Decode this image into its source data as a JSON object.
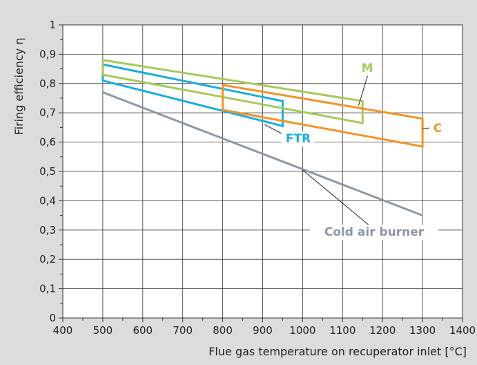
{
  "chart_data": {
    "type": "line",
    "xlabel": "Flue gas temperature on recuperator inlet [°C]",
    "ylabel": "Firing efficiency η",
    "xlim": [
      400,
      1400
    ],
    "ylim": [
      0,
      1
    ],
    "x_ticks": [
      "400",
      "500",
      "600",
      "700",
      "800",
      "900",
      "1000",
      "1100",
      "1200",
      "1300",
      "1400"
    ],
    "y_ticks": [
      "0",
      "0,1",
      "0,2",
      "0,3",
      "0,4",
      "0,5",
      "0,6",
      "0,7",
      "0,8",
      "0,9",
      "1"
    ],
    "grid": true,
    "series": [
      {
        "name": "Cold air burner",
        "color": "#8a98a5",
        "shape": "line",
        "points": [
          [
            500,
            0.77
          ],
          [
            1300,
            0.35
          ]
        ],
        "label_anchor": [
          1000,
          0.505
        ]
      },
      {
        "name": "FTR",
        "color": "#1aaedc",
        "shape": "band",
        "points": [
          [
            500,
            0.865
          ],
          [
            950,
            0.74
          ],
          [
            950,
            0.655
          ],
          [
            500,
            0.81
          ]
        ],
        "label_anchor": [
          905,
          0.66
        ]
      },
      {
        "name": "M",
        "color": "#a7c957",
        "shape": "band",
        "points": [
          [
            500,
            0.88
          ],
          [
            1150,
            0.74
          ],
          [
            1150,
            0.665
          ],
          [
            500,
            0.83
          ]
        ],
        "label_anchor": [
          1140,
          0.725
        ]
      },
      {
        "name": "C",
        "color": "#f39424",
        "shape": "band",
        "points": [
          [
            800,
            0.795
          ],
          [
            1300,
            0.68
          ],
          [
            1300,
            0.585
          ],
          [
            800,
            0.71
          ]
        ],
        "label_anchor": [
          1300,
          0.645
        ]
      }
    ]
  }
}
